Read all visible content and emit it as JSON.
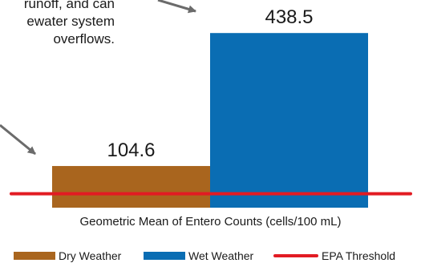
{
  "annotation": {
    "lines": [
      "runoff, and can",
      "ewater system",
      "overflows."
    ]
  },
  "chart_data": {
    "type": "bar",
    "categories": [
      "Dry Weather",
      "Wet Weather"
    ],
    "values": [
      104.6,
      438.5
    ],
    "value_labels": [
      "104.6",
      "438.5"
    ],
    "colors": [
      "#A9651E",
      "#0A6DB3"
    ],
    "threshold": {
      "name": "EPA Threshold",
      "value": 35,
      "color": "#E21B23"
    },
    "xlabel": "Geometric Mean of Entero Counts (cells/100 mL)",
    "ylim": [
      0,
      480
    ],
    "grid": false,
    "legend_placement": "bottom"
  },
  "legend": {
    "items": [
      {
        "label": "Dry Weather",
        "kind": "bar",
        "color": "#A9651E"
      },
      {
        "label": "Wet Weather",
        "kind": "bar",
        "color": "#0A6DB3"
      },
      {
        "label": "EPA Threshold",
        "kind": "line",
        "color": "#E21B23"
      }
    ]
  }
}
